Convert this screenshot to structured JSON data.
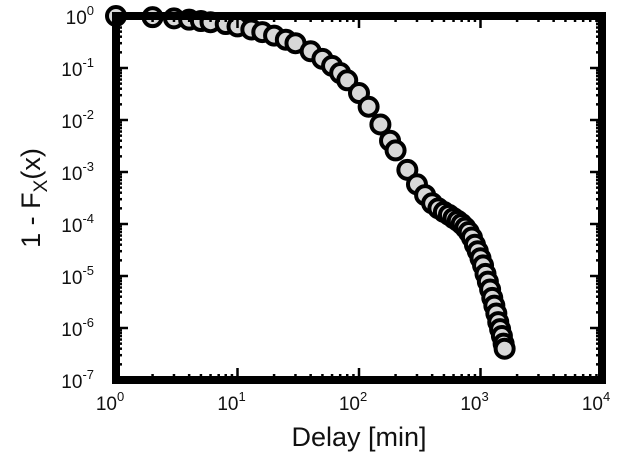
{
  "chart_data": {
    "type": "scatter",
    "xlabel": "Delay [min]",
    "ylabel": {
      "prefix": "1 - F",
      "subscript": "X",
      "suffix": "(x)"
    },
    "x_scale": "log",
    "y_scale": "log",
    "xlim": [
      1,
      10000
    ],
    "ylim": [
      1e-07,
      1
    ],
    "x_ticks": [
      {
        "value": 1,
        "base": "10",
        "exp": "0"
      },
      {
        "value": 10,
        "base": "10",
        "exp": "1"
      },
      {
        "value": 100,
        "base": "10",
        "exp": "2"
      },
      {
        "value": 1000,
        "base": "10",
        "exp": "3"
      },
      {
        "value": 10000,
        "base": "10",
        "exp": "4"
      }
    ],
    "y_ticks": [
      {
        "value": 1,
        "base": "10",
        "exp": "0"
      },
      {
        "value": 0.1,
        "base": "10",
        "exp": "-1"
      },
      {
        "value": 0.01,
        "base": "10",
        "exp": "-2"
      },
      {
        "value": 0.001,
        "base": "10",
        "exp": "-3"
      },
      {
        "value": 0.0001,
        "base": "10",
        "exp": "-4"
      },
      {
        "value": 1e-05,
        "base": "10",
        "exp": "-5"
      },
      {
        "value": 1e-06,
        "base": "10",
        "exp": "-6"
      },
      {
        "value": 1e-07,
        "base": "10",
        "exp": "-7"
      }
    ],
    "grid": false,
    "marker_fill": "#d8d8d8",
    "marker_edge": "#000000",
    "series": [
      {
        "points": [
          [
            1,
            1.0
          ],
          [
            2,
            0.95
          ],
          [
            3,
            0.9
          ],
          [
            4,
            0.85
          ],
          [
            5,
            0.8
          ],
          [
            6,
            0.76
          ],
          [
            8,
            0.7
          ],
          [
            10,
            0.63
          ],
          [
            13,
            0.55
          ],
          [
            16,
            0.49
          ],
          [
            20,
            0.42
          ],
          [
            25,
            0.35
          ],
          [
            30,
            0.3
          ],
          [
            40,
            0.21
          ],
          [
            50,
            0.15
          ],
          [
            60,
            0.11
          ],
          [
            70,
            0.08
          ],
          [
            80,
            0.058
          ],
          [
            100,
            0.033
          ],
          [
            120,
            0.018
          ],
          [
            150,
            0.0082
          ],
          [
            180,
            0.004
          ],
          [
            200,
            0.0026
          ],
          [
            250,
            0.0011
          ],
          [
            300,
            0.00058
          ],
          [
            350,
            0.00036
          ],
          [
            400,
            0.00025
          ],
          [
            450,
            0.0002
          ],
          [
            500,
            0.00017
          ],
          [
            550,
            0.00015
          ],
          [
            600,
            0.00013
          ],
          [
            650,
            0.000115
          ],
          [
            700,
            0.0001
          ],
          [
            750,
            8.5e-05
          ],
          [
            800,
            7e-05
          ],
          [
            850,
            5.5e-05
          ],
          [
            900,
            4e-05
          ],
          [
            950,
            3e-05
          ],
          [
            1000,
            2.2e-05
          ],
          [
            1050,
            1.6e-05
          ],
          [
            1100,
            1.1e-05
          ],
          [
            1150,
            7.8e-06
          ],
          [
            1200,
            5.5e-06
          ],
          [
            1250,
            3.8e-06
          ],
          [
            1300,
            2.7e-06
          ],
          [
            1350,
            1.9e-06
          ],
          [
            1400,
            1.3e-06
          ],
          [
            1450,
            9.5e-07
          ],
          [
            1500,
            7e-07
          ],
          [
            1550,
            5e-07
          ],
          [
            1580,
            4e-07
          ]
        ]
      }
    ]
  }
}
